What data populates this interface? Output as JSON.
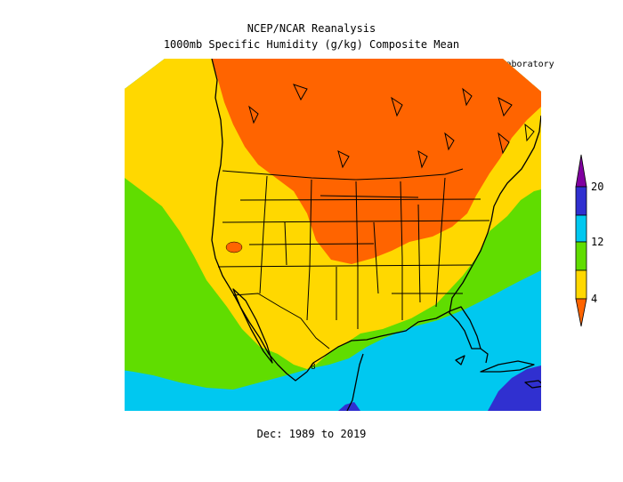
{
  "title": "NCEP/NCAR Reanalysis",
  "subtitle": "1000mb Specific Humidity (g/kg) Composite Mean",
  "credit": "NOAA Physical Sciences Laboratory",
  "footer": "Dec: 1989 to 2019",
  "colorbar": {
    "labels": [
      "20",
      "12",
      "4"
    ],
    "colors": [
      "#8000a0",
      "#3030d0",
      "#00c8f0",
      "#60dd00",
      "#ffd800",
      "#ff6400"
    ]
  },
  "map": {
    "contour_label": "8",
    "band_colors": {
      "lt4": "#ff6400",
      "4_8": "#ffd800",
      "8_12": "#60dd00",
      "12_16": "#00c8f0",
      "16_20": "#3030d0"
    }
  }
}
